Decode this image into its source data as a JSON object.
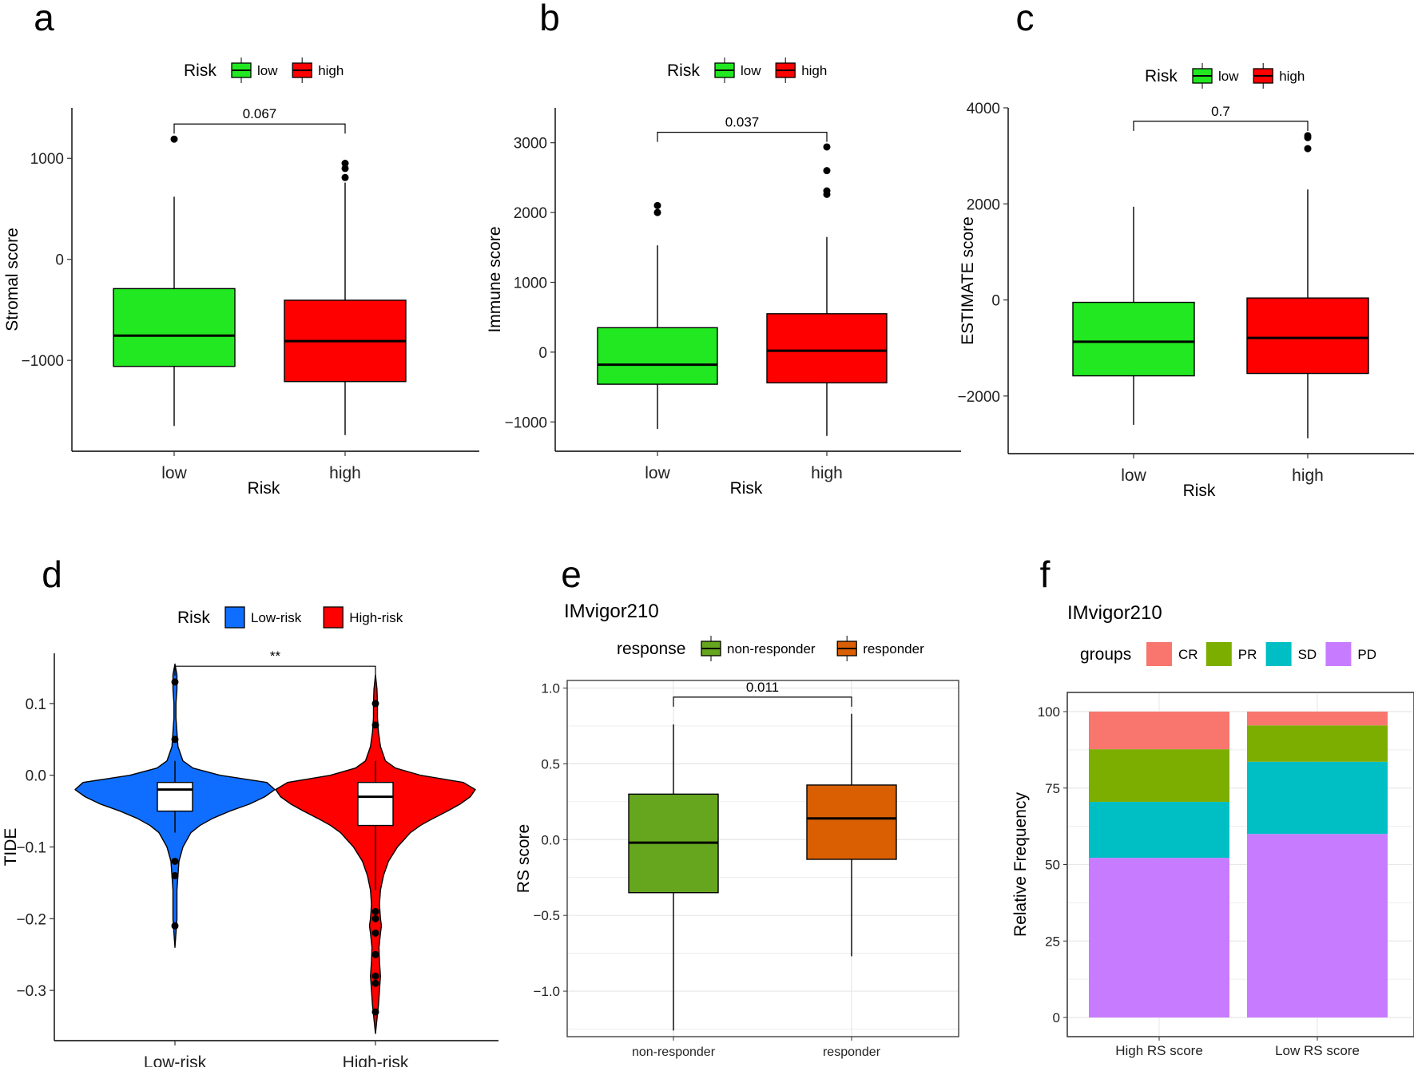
{
  "chart_data": [
    {
      "panel": "a",
      "type": "boxplot",
      "xlabel": "Risk",
      "ylabel": "Stromal score",
      "legend_title": "Risk",
      "legend_position": "top",
      "categories": [
        "low",
        "high"
      ],
      "colors": [
        "#21E821",
        "#FF0000"
      ],
      "ylim": [
        -1900,
        1500
      ],
      "yticks": [
        -1000,
        0,
        1000
      ],
      "boxes": [
        {
          "min": -1650,
          "q1": -1060,
          "median": -755,
          "q3": -290,
          "max": 620,
          "outliers": [
            1190
          ]
        },
        {
          "min": -1740,
          "q1": -1210,
          "median": -810,
          "q3": -405,
          "max": 760,
          "outliers": [
            810,
            900,
            950
          ]
        }
      ],
      "pvalue": "0.067",
      "bracket_y": 1340
    },
    {
      "panel": "b",
      "type": "boxplot",
      "xlabel": "Risk",
      "ylabel": "Immune score",
      "legend_title": "Risk",
      "legend_position": "top",
      "categories": [
        "low",
        "high"
      ],
      "colors": [
        "#21E821",
        "#FF0000"
      ],
      "ylim": [
        -1420,
        3500
      ],
      "yticks": [
        -1000,
        0,
        1000,
        2000,
        3000
      ],
      "boxes": [
        {
          "min": -1100,
          "q1": -460,
          "median": -180,
          "q3": 350,
          "max": 1530,
          "outliers": [
            2000,
            2100
          ]
        },
        {
          "min": -1200,
          "q1": -440,
          "median": 20,
          "q3": 550,
          "max": 1650,
          "outliers": [
            2260,
            2310,
            2600,
            2940
          ]
        }
      ],
      "pvalue": "0.037",
      "bracket_y": 3150
    },
    {
      "panel": "c",
      "type": "boxplot",
      "xlabel": "Risk",
      "ylabel": "ESTIMATE score",
      "legend_title": "Risk",
      "legend_position": "top",
      "categories": [
        "low",
        "high"
      ],
      "colors": [
        "#21E821",
        "#FF0000"
      ],
      "ylim": [
        -3200,
        4000
      ],
      "yticks": [
        -2000,
        0,
        2000,
        4000
      ],
      "boxes": [
        {
          "min": -2600,
          "q1": -1580,
          "median": -870,
          "q3": -50,
          "max": 1940,
          "outliers": []
        },
        {
          "min": -2880,
          "q1": -1530,
          "median": -790,
          "q3": 40,
          "max": 2300,
          "outliers": [
            3150,
            3380,
            3420
          ]
        }
      ],
      "pvalue": "0.7",
      "bracket_y": 3720
    },
    {
      "panel": "d",
      "type": "violin",
      "xlabel": "",
      "ylabel": "TIDE",
      "legend_title": "Risk",
      "legend_position": "top",
      "categories": [
        "Low-risk",
        "High-risk"
      ],
      "colors": [
        "#0F6EFF",
        "#FF0000"
      ],
      "ylim": [
        -0.37,
        0.17
      ],
      "yticks": [
        -0.3,
        -0.2,
        -0.1,
        0.0,
        0.1
      ],
      "ytick_labels": [
        "-0.3",
        "-0.2",
        "-0.1",
        "0.0",
        "0.1"
      ],
      "boxes": [
        {
          "min": -0.08,
          "q1": -0.05,
          "median": -0.02,
          "q3": -0.01,
          "max": 0.02,
          "outliers": [
            0.13,
            0.05,
            -0.12,
            -0.14,
            -0.21
          ]
        },
        {
          "min": -0.16,
          "q1": -0.07,
          "median": -0.03,
          "q3": -0.01,
          "max": 0.02,
          "outliers": [
            0.1,
            0.07,
            -0.19,
            -0.2,
            -0.22,
            -0.25,
            -0.28,
            -0.29,
            -0.33
          ]
        }
      ],
      "violin_y": [
        0.155,
        0.14,
        0.12,
        0.1,
        0.08,
        0.06,
        0.04,
        0.02,
        0.01,
        0.0,
        -0.01,
        -0.02,
        -0.03,
        -0.04,
        -0.05,
        -0.06,
        -0.07,
        -0.08,
        -0.1,
        -0.12,
        -0.14,
        -0.16,
        -0.18,
        -0.2,
        -0.21,
        -0.22,
        -0.24,
        -0.26,
        -0.28,
        -0.3,
        -0.32,
        -0.34,
        -0.36
      ],
      "violin_width": [
        [
          0.0,
          0.02,
          0.02,
          0.01,
          0.01,
          0.02,
          0.03,
          0.08,
          0.18,
          0.45,
          0.92,
          1.0,
          0.9,
          0.75,
          0.55,
          0.38,
          0.25,
          0.16,
          0.08,
          0.04,
          0.03,
          0.02,
          0.02,
          0.02,
          0.015,
          0.01,
          0.0,
          null,
          null,
          null,
          null,
          null,
          null
        ],
        [
          null,
          0.0,
          0.015,
          0.02,
          0.02,
          0.03,
          0.05,
          0.1,
          0.2,
          0.45,
          0.88,
          1.0,
          0.95,
          0.85,
          0.72,
          0.58,
          0.45,
          0.35,
          0.22,
          0.13,
          0.08,
          0.05,
          0.04,
          0.05,
          0.06,
          0.05,
          0.035,
          0.04,
          0.05,
          0.04,
          0.03,
          0.015,
          0.0
        ]
      ],
      "annotation": "**",
      "bracket_y": 0.152
    },
    {
      "panel": "e",
      "type": "boxplot",
      "title": "IMvigor210",
      "xlabel": "",
      "ylabel": "RS score",
      "legend_title": "response",
      "legend_position": "top",
      "categories": [
        "non-responder",
        "responder"
      ],
      "colors": [
        "#66A61E",
        "#D95F02"
      ],
      "ylim": [
        -1.3,
        1.05
      ],
      "yticks": [
        -1.0,
        -0.5,
        0.0,
        0.5,
        1.0
      ],
      "ytick_labels": [
        "-1.0",
        "-0.5",
        "0.0",
        "0.5",
        "1.0"
      ],
      "grid": true,
      "boxes": [
        {
          "min": -1.26,
          "q1": -0.35,
          "median": -0.02,
          "q3": 0.3,
          "max": 0.76,
          "outliers": []
        },
        {
          "min": -0.77,
          "q1": -0.13,
          "median": 0.14,
          "q3": 0.36,
          "max": 0.83,
          "outliers": []
        }
      ],
      "pvalue": "0.011",
      "bracket_y": 0.94
    },
    {
      "panel": "f",
      "type": "stacked_bar",
      "title": "IMvigor210",
      "xlabel": "",
      "ylabel": "Relative Frequency",
      "legend_title": "groups",
      "legend_position": "top",
      "categories": [
        "High RS score",
        "Low RS score"
      ],
      "ylim": [
        0,
        100
      ],
      "yticks": [
        0,
        25,
        50,
        75,
        100
      ],
      "grid": true,
      "series": [
        {
          "name": "PD",
          "color": "#C77CFF",
          "values": [
            52.2,
            60.0
          ]
        },
        {
          "name": "SD",
          "color": "#00BFC4",
          "values": [
            18.3,
            23.6
          ]
        },
        {
          "name": "PR",
          "color": "#7CAE00",
          "values": [
            17.2,
            11.9
          ]
        },
        {
          "name": "CR",
          "color": "#F8766D",
          "values": [
            12.3,
            4.5
          ]
        }
      ],
      "legend_order": [
        "CR",
        "PR",
        "SD",
        "PD"
      ]
    }
  ],
  "panel_labels": [
    "a",
    "b",
    "c",
    "d",
    "e",
    "f"
  ]
}
